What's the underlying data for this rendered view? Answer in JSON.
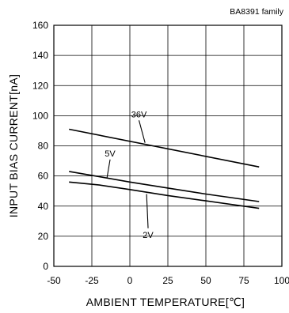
{
  "chart_data": {
    "type": "line",
    "corner_note": "BA8391 family",
    "xlabel": "AMBIENT TEMPERATURE[℃]",
    "ylabel": "INPUT BIAS CURRENT[nA]",
    "xlim": [
      -50,
      100
    ],
    "ylim": [
      0,
      160
    ],
    "xticks": [
      "-50",
      "-25",
      "0",
      "25",
      "50",
      "75",
      "100"
    ],
    "yticks": [
      "0",
      "20",
      "40",
      "60",
      "80",
      "100",
      "120",
      "140",
      "160"
    ],
    "grid": true,
    "series": [
      {
        "name": "36V",
        "x": [
          -40,
          85
        ],
        "y": [
          91,
          66
        ],
        "label_at": [
          10,
          82
        ],
        "text_at": [
          6,
          99
        ]
      },
      {
        "name": "5V",
        "x": [
          -40,
          -20,
          0,
          25,
          50,
          85
        ],
        "y": [
          63,
          59.5,
          56,
          52,
          48,
          43
        ],
        "label_at": [
          -15,
          59
        ],
        "text_at": [
          -13,
          73
        ]
      },
      {
        "name": "2V",
        "x": [
          -40,
          -20,
          0,
          25,
          50,
          85
        ],
        "y": [
          56,
          54,
          51,
          47,
          43.5,
          38.5
        ],
        "label_at": [
          11,
          48
        ],
        "text_at": [
          12,
          19
        ]
      }
    ]
  }
}
